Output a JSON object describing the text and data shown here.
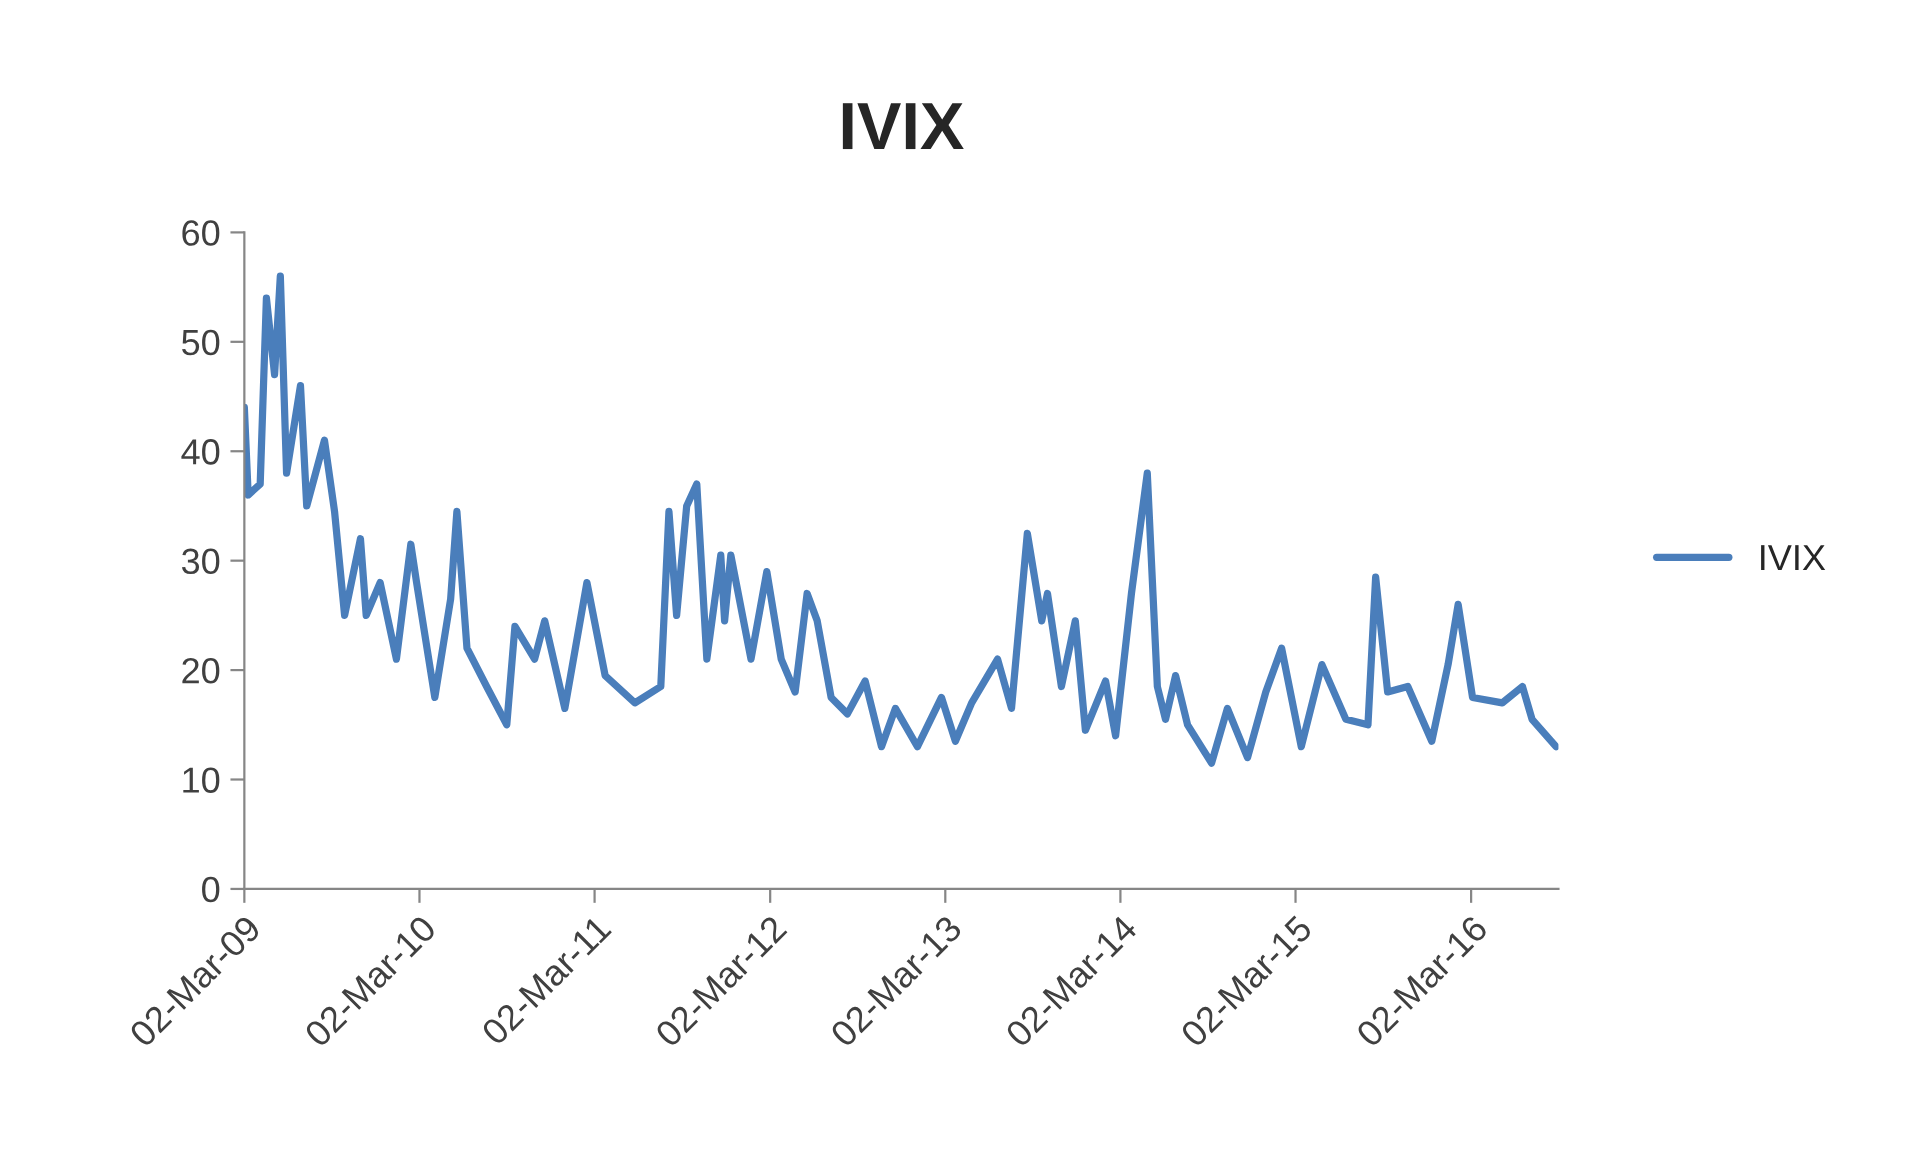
{
  "chart_data": {
    "type": "line",
    "title": "IVIX",
    "x": [
      "2009-03-02",
      "2009-03-10",
      "2009-04-04",
      "2009-04-17",
      "2009-05-04",
      "2009-05-16",
      "2009-05-29",
      "2009-06-27",
      "2009-07-10",
      "2009-08-16",
      "2009-09-06",
      "2009-09-27",
      "2009-10-30",
      "2009-11-11",
      "2009-12-10",
      "2010-01-13",
      "2010-02-12",
      "2010-02-24",
      "2010-04-03",
      "2010-05-06",
      "2010-05-19",
      "2010-06-09",
      "2010-07-20",
      "2010-08-31",
      "2010-09-17",
      "2010-10-28",
      "2010-11-18",
      "2010-12-30",
      "2011-02-14",
      "2011-03-24",
      "2011-05-25",
      "2011-07-18",
      "2011-08-04",
      "2011-08-20",
      "2011-09-10",
      "2011-10-01",
      "2011-10-22",
      "2011-11-20",
      "2011-11-28",
      "2011-12-11",
      "2012-01-22",
      "2012-02-24",
      "2012-03-25",
      "2012-04-23",
      "2012-05-18",
      "2012-06-08",
      "2012-07-07",
      "2012-08-10",
      "2012-09-16",
      "2012-10-20",
      "2012-11-18",
      "2013-01-03",
      "2013-02-22",
      "2013-03-23",
      "2013-04-26",
      "2013-06-19",
      "2013-07-18",
      "2013-08-20",
      "2013-09-19",
      "2013-10-01",
      "2013-10-30",
      "2013-11-28",
      "2013-12-19",
      "2014-01-30",
      "2014-02-20",
      "2014-03-25",
      "2014-04-27",
      "2014-05-18",
      "2014-06-04",
      "2014-06-25",
      "2014-07-20",
      "2014-09-08",
      "2014-10-11",
      "2014-11-22",
      "2014-12-30",
      "2015-02-01",
      "2015-03-14",
      "2015-04-26",
      "2015-06-15",
      "2015-07-31",
      "2015-08-16",
      "2015-09-10",
      "2015-10-22",
      "2015-12-11",
      "2016-01-14",
      "2016-02-04",
      "2016-03-05",
      "2016-05-06",
      "2016-06-17",
      "2016-07-07",
      "2016-08-26"
    ],
    "series": [
      {
        "name": "IVIX",
        "color": "#4a7ebb",
        "values": [
          44,
          36,
          37,
          54,
          47,
          56,
          38,
          46,
          35,
          41,
          34.5,
          25,
          32,
          25,
          28,
          21,
          31.5,
          28,
          17.5,
          26.5,
          34.5,
          22,
          18.5,
          15,
          24,
          21,
          24.5,
          16.5,
          28,
          19.5,
          17,
          18.5,
          34.5,
          25,
          35,
          37,
          21,
          30.5,
          24.5,
          30.5,
          21,
          29,
          21,
          18,
          27,
          24.5,
          17.5,
          16,
          19,
          13,
          16.5,
          13,
          17.5,
          13.5,
          17,
          21,
          16.5,
          32.5,
          24.5,
          27,
          18.5,
          24.5,
          14.5,
          19,
          14,
          27,
          38,
          18.5,
          15.5,
          19.5,
          15,
          11.5,
          16.5,
          12,
          18,
          22,
          13,
          20.5,
          15.5,
          15,
          28.5,
          18,
          18.5,
          13.5,
          20.5,
          26,
          17.5,
          17,
          18.5,
          15.5,
          13
        ]
      }
    ],
    "xlim": [
      "2009-03-02",
      "2016-08-31"
    ],
    "xticks": [
      {
        "value": "2009-03-02",
        "label": "02-Mar-09"
      },
      {
        "value": "2010-03-02",
        "label": "02-Mar-10"
      },
      {
        "value": "2011-03-02",
        "label": "02-Mar-11"
      },
      {
        "value": "2012-03-02",
        "label": "02-Mar-12"
      },
      {
        "value": "2013-03-02",
        "label": "02-Mar-13"
      },
      {
        "value": "2014-03-02",
        "label": "02-Mar-14"
      },
      {
        "value": "2015-03-02",
        "label": "02-Mar-15"
      },
      {
        "value": "2016-03-02",
        "label": "02-Mar-16"
      }
    ],
    "ylim": [
      0,
      60
    ],
    "yticks": [
      0,
      10,
      20,
      30,
      40,
      50,
      60
    ],
    "grid": false,
    "legend": "right",
    "marker": "none",
    "line_style": "solid"
  }
}
